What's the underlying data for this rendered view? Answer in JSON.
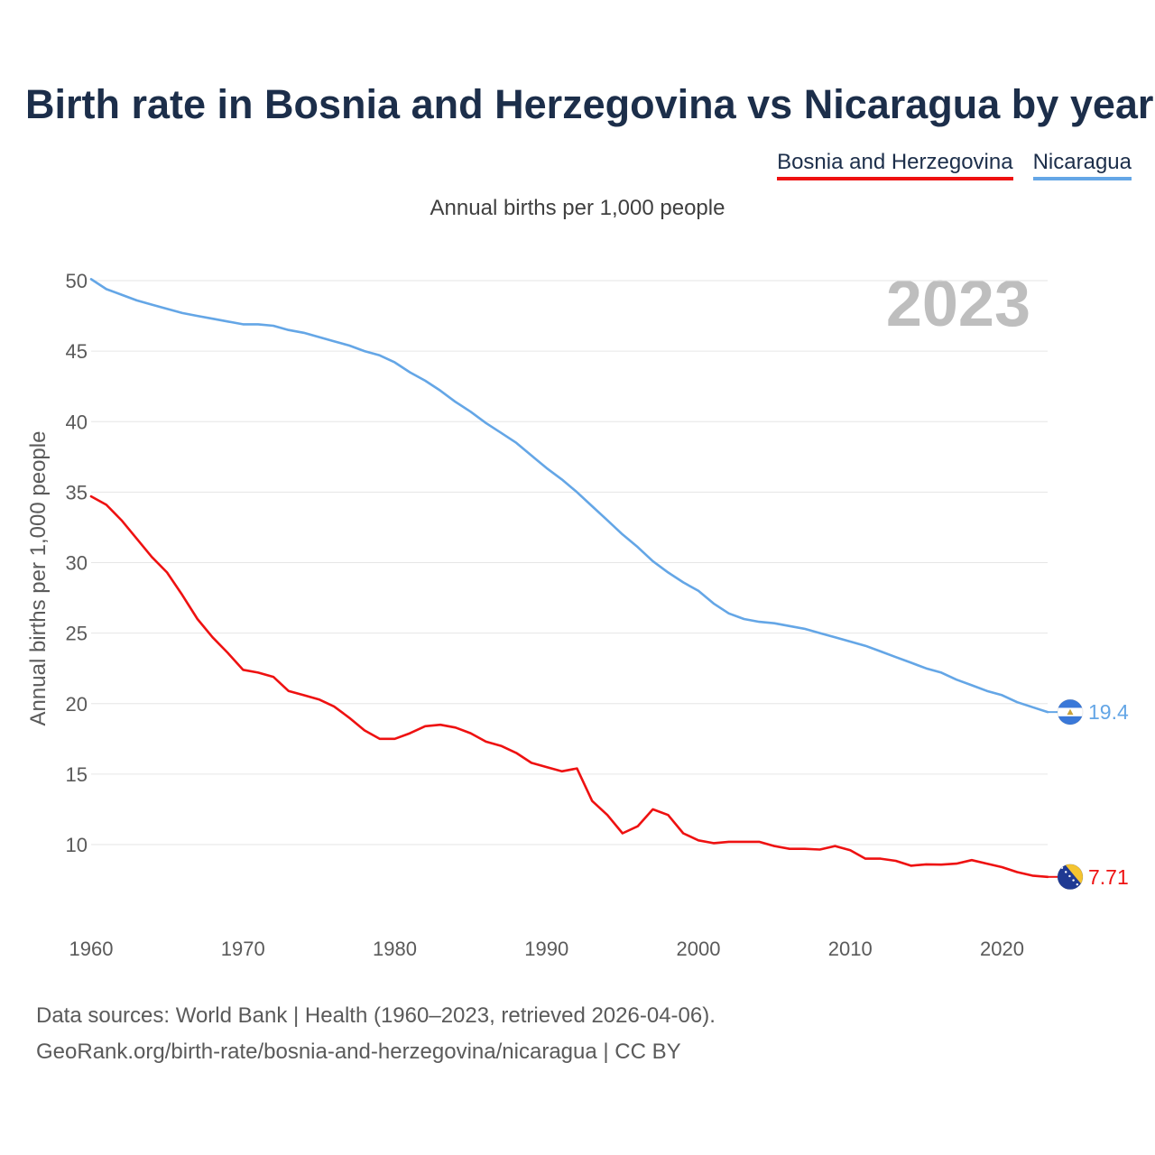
{
  "chart_data": {
    "type": "line",
    "title": "Birth rate in Bosnia and Herzegovina vs Nicaragua by year",
    "subtitle": "Annual births per 1,000 people",
    "ylabel": "Annual births per 1,000 people",
    "xlabel": "",
    "year_watermark": "2023",
    "xlim": [
      1960,
      2023
    ],
    "ylim": [
      6,
      50.5
    ],
    "x_ticks": [
      1960,
      1970,
      1980,
      1990,
      2000,
      2010,
      2020
    ],
    "y_ticks": [
      10,
      15,
      20,
      25,
      30,
      35,
      40,
      45,
      50
    ],
    "grid": true,
    "legend_position": "top-right",
    "x": [
      1960,
      1961,
      1962,
      1963,
      1964,
      1965,
      1966,
      1967,
      1968,
      1969,
      1970,
      1971,
      1972,
      1973,
      1974,
      1975,
      1976,
      1977,
      1978,
      1979,
      1980,
      1981,
      1982,
      1983,
      1984,
      1985,
      1986,
      1987,
      1988,
      1989,
      1990,
      1991,
      1992,
      1993,
      1994,
      1995,
      1996,
      1997,
      1998,
      1999,
      2000,
      2001,
      2002,
      2003,
      2004,
      2005,
      2006,
      2007,
      2008,
      2009,
      2010,
      2011,
      2012,
      2013,
      2014,
      2015,
      2016,
      2017,
      2018,
      2019,
      2020,
      2021,
      2022,
      2023
    ],
    "series": [
      {
        "name": "Bosnia and Herzegovina",
        "color": "#ee1111",
        "end_label": "7.71",
        "flag": "bosnia-flag-icon",
        "values": [
          34.7,
          34.1,
          33.0,
          31.7,
          30.4,
          29.3,
          27.7,
          26.0,
          24.7,
          23.6,
          22.4,
          22.2,
          21.9,
          20.9,
          20.6,
          20.3,
          19.8,
          19.0,
          18.1,
          17.5,
          17.5,
          17.9,
          18.4,
          18.5,
          18.3,
          17.9,
          17.3,
          17.0,
          16.5,
          15.8,
          15.5,
          15.2,
          15.4,
          13.1,
          12.1,
          10.8,
          11.3,
          12.5,
          12.1,
          10.8,
          10.3,
          10.1,
          10.2,
          10.2,
          10.2,
          9.9,
          9.7,
          9.7,
          9.65,
          9.9,
          9.6,
          9.0,
          9.0,
          8.85,
          8.5,
          8.6,
          8.58,
          8.65,
          8.9,
          8.65,
          8.4,
          8.05,
          7.8,
          7.71
        ]
      },
      {
        "name": "Nicaragua",
        "color": "#64a6e6",
        "end_label": "19.4",
        "flag": "nicaragua-flag-icon",
        "values": [
          50.1,
          49.4,
          49.0,
          48.6,
          48.3,
          48.0,
          47.7,
          47.5,
          47.3,
          47.1,
          46.9,
          46.9,
          46.8,
          46.5,
          46.3,
          46.0,
          45.7,
          45.4,
          45.0,
          44.7,
          44.2,
          43.5,
          42.9,
          42.2,
          41.4,
          40.7,
          39.9,
          39.2,
          38.5,
          37.6,
          36.7,
          35.9,
          35.0,
          34.0,
          33.0,
          32.0,
          31.1,
          30.1,
          29.3,
          28.6,
          28.0,
          27.1,
          26.4,
          26.0,
          25.8,
          25.7,
          25.5,
          25.3,
          25.0,
          24.7,
          24.4,
          24.1,
          23.7,
          23.3,
          22.9,
          22.5,
          22.2,
          21.7,
          21.3,
          20.9,
          20.6,
          20.1,
          19.75,
          19.4
        ]
      }
    ]
  },
  "source": {
    "line1": "Data sources: World Bank | Health (1960–2023, retrieved 2026-04-06).",
    "line2": "GeoRank.org/birth-rate/bosnia-and-herzegovina/nicaragua | CC BY"
  }
}
